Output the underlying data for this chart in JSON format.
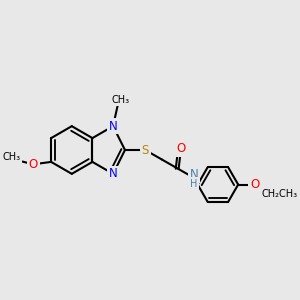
{
  "bg_color": "#e8e8e8",
  "bond_color": "#000000",
  "bond_width": 1.5,
  "atom_colors": {
    "N": "#0000FF",
    "S": "#B8860B",
    "O": "#FF0000",
    "NH": "#4682B4"
  },
  "font_size_atom": 8.5,
  "xlim": [
    0,
    10
  ],
  "ylim": [
    1,
    8
  ]
}
